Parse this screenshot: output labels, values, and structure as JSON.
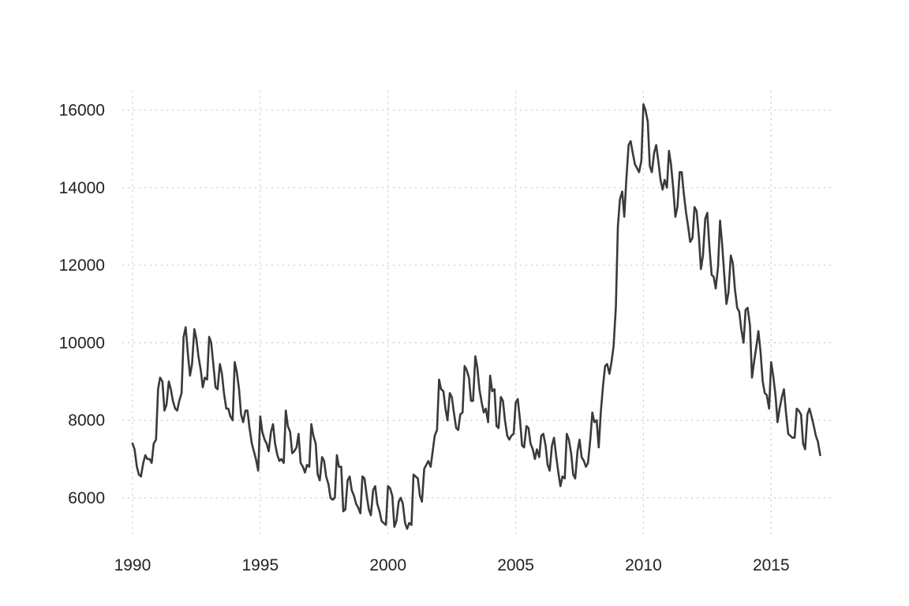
{
  "chart_data": {
    "type": "line",
    "title": "",
    "xlabel": "",
    "ylabel": "",
    "grid": true,
    "legend": "none",
    "xlim": [
      1989.6,
      2017.4
    ],
    "ylim": [
      5000,
      16500
    ],
    "x_ticks": [
      1990,
      1995,
      2000,
      2005,
      2010,
      2015
    ],
    "x_tick_labels": [
      "1990",
      "1995",
      "2000",
      "2005",
      "2010",
      "2015"
    ],
    "y_ticks": [
      6000,
      8000,
      10000,
      12000,
      14000,
      16000
    ],
    "y_tick_labels": [
      "6000",
      "8000",
      "10000",
      "12000",
      "14000",
      "16000"
    ],
    "line_color": "#3a3a3a",
    "series": [
      {
        "x": [
          1990.0,
          1990.08,
          1990.17,
          1990.25,
          1990.33,
          1990.42,
          1990.5,
          1990.58,
          1990.67,
          1990.75,
          1990.83,
          1990.92,
          1991.0,
          1991.08,
          1991.17,
          1991.25,
          1991.33,
          1991.42,
          1991.5,
          1991.58,
          1991.67,
          1991.75,
          1991.83,
          1991.92,
          1992.0,
          1992.08,
          1992.17,
          1992.25,
          1992.33,
          1992.42,
          1992.5,
          1992.58,
          1992.67,
          1992.75,
          1992.83,
          1992.92,
          1993.0,
          1993.08,
          1993.17,
          1993.25,
          1993.33,
          1993.42,
          1993.5,
          1993.58,
          1993.67,
          1993.75,
          1993.83,
          1993.92,
          1994.0,
          1994.08,
          1994.17,
          1994.25,
          1994.33,
          1994.42,
          1994.5,
          1994.58,
          1994.67,
          1994.75,
          1994.83,
          1994.92,
          1995.0,
          1995.08,
          1995.17,
          1995.25,
          1995.33,
          1995.42,
          1995.5,
          1995.58,
          1995.67,
          1995.75,
          1995.83,
          1995.92,
          1996.0,
          1996.08,
          1996.17,
          1996.25,
          1996.33,
          1996.42,
          1996.5,
          1996.58,
          1996.67,
          1996.75,
          1996.83,
          1996.92,
          1997.0,
          1997.08,
          1997.17,
          1997.25,
          1997.33,
          1997.42,
          1997.5,
          1997.58,
          1997.67,
          1997.75,
          1997.83,
          1997.92,
          1998.0,
          1998.08,
          1998.17,
          1998.25,
          1998.33,
          1998.42,
          1998.5,
          1998.58,
          1998.67,
          1998.75,
          1998.83,
          1998.92,
          1999.0,
          1999.08,
          1999.17,
          1999.25,
          1999.33,
          1999.42,
          1999.5,
          1999.58,
          1999.67,
          1999.75,
          1999.83,
          1999.92,
          2000.0,
          2000.08,
          2000.17,
          2000.25,
          2000.33,
          2000.42,
          2000.5,
          2000.58,
          2000.67,
          2000.75,
          2000.83,
          2000.92,
          2001.0,
          2001.08,
          2001.17,
          2001.25,
          2001.33,
          2001.42,
          2001.5,
          2001.58,
          2001.67,
          2001.75,
          2001.83,
          2001.92,
          2002.0,
          2002.08,
          2002.17,
          2002.25,
          2002.33,
          2002.42,
          2002.5,
          2002.58,
          2002.67,
          2002.75,
          2002.83,
          2002.92,
          2003.0,
          2003.08,
          2003.17,
          2003.25,
          2003.33,
          2003.42,
          2003.5,
          2003.58,
          2003.67,
          2003.75,
          2003.83,
          2003.92,
          2004.0,
          2004.08,
          2004.17,
          2004.25,
          2004.33,
          2004.42,
          2004.5,
          2004.58,
          2004.67,
          2004.75,
          2004.83,
          2004.92,
          2005.0,
          2005.08,
          2005.17,
          2005.25,
          2005.33,
          2005.42,
          2005.5,
          2005.58,
          2005.67,
          2005.75,
          2005.83,
          2005.92,
          2006.0,
          2006.08,
          2006.17,
          2006.25,
          2006.33,
          2006.42,
          2006.5,
          2006.58,
          2006.67,
          2006.75,
          2006.83,
          2006.92,
          2007.0,
          2007.08,
          2007.17,
          2007.25,
          2007.33,
          2007.42,
          2007.5,
          2007.58,
          2007.67,
          2007.75,
          2007.83,
          2007.92,
          2008.0,
          2008.08,
          2008.17,
          2008.25,
          2008.33,
          2008.42,
          2008.5,
          2008.58,
          2008.67,
          2008.75,
          2008.83,
          2008.92,
          2009.0,
          2009.08,
          2009.17,
          2009.25,
          2009.33,
          2009.42,
          2009.5,
          2009.58,
          2009.67,
          2009.75,
          2009.83,
          2009.92,
          2010.0,
          2010.08,
          2010.17,
          2010.25,
          2010.33,
          2010.42,
          2010.5,
          2010.58,
          2010.67,
          2010.75,
          2010.83,
          2010.92,
          2011.0,
          2011.08,
          2011.17,
          2011.25,
          2011.33,
          2011.42,
          2011.5,
          2011.58,
          2011.67,
          2011.75,
          2011.83,
          2011.92,
          2012.0,
          2012.08,
          2012.17,
          2012.25,
          2012.33,
          2012.42,
          2012.5,
          2012.58,
          2012.67,
          2012.75,
          2012.83,
          2012.92,
          2013.0,
          2013.08,
          2013.17,
          2013.25,
          2013.33,
          2013.42,
          2013.5,
          2013.58,
          2013.67,
          2013.75,
          2013.83,
          2013.92,
          2014.0,
          2014.08,
          2014.17,
          2014.25,
          2014.33,
          2014.42,
          2014.5,
          2014.58,
          2014.67,
          2014.75,
          2014.83,
          2014.92,
          2015.0,
          2015.08,
          2015.17,
          2015.25,
          2015.33,
          2015.42,
          2015.5,
          2015.58,
          2015.67,
          2015.75,
          2015.83,
          2015.92,
          2016.0,
          2016.08,
          2016.17,
          2016.25,
          2016.33,
          2016.42,
          2016.5,
          2016.58,
          2016.67,
          2016.75,
          2016.83,
          2016.92
        ],
        "y": [
          7400,
          7250,
          6800,
          6600,
          6550,
          6900,
          7100,
          7000,
          7000,
          6900,
          7400,
          7500,
          8800,
          9100,
          9000,
          8250,
          8400,
          9000,
          8800,
          8500,
          8300,
          8250,
          8500,
          8700,
          10150,
          10400,
          9700,
          9150,
          9450,
          10350,
          10100,
          9650,
          9300,
          8850,
          9100,
          9050,
          10150,
          10000,
          9400,
          8850,
          8800,
          9450,
          9200,
          8700,
          8300,
          8300,
          8100,
          8000,
          9500,
          9250,
          8800,
          8150,
          7950,
          8250,
          8250,
          7800,
          7400,
          7200,
          7000,
          6700,
          8100,
          7700,
          7500,
          7400,
          7200,
          7700,
          7900,
          7400,
          7100,
          6950,
          7000,
          6900,
          8250,
          7850,
          7700,
          7150,
          7200,
          7300,
          7650,
          6900,
          6800,
          6650,
          6850,
          6800,
          7900,
          7600,
          7400,
          6600,
          6450,
          7050,
          6950,
          6550,
          6350,
          6000,
          5950,
          6000,
          7100,
          6800,
          6800,
          5650,
          5700,
          6450,
          6550,
          6200,
          6050,
          5850,
          5750,
          5600,
          6550,
          6500,
          6050,
          5700,
          5550,
          6200,
          6300,
          5850,
          5650,
          5400,
          5350,
          5300,
          6300,
          6250,
          6050,
          5250,
          5400,
          5900,
          6000,
          5850,
          5350,
          5200,
          5350,
          5300,
          6600,
          6550,
          6500,
          6050,
          5900,
          6750,
          6850,
          6950,
          6800,
          7200,
          7600,
          7750,
          9050,
          8800,
          8750,
          8300,
          8000,
          8700,
          8600,
          8200,
          7800,
          7750,
          8150,
          8200,
          9400,
          9300,
          9100,
          8500,
          8500,
          9650,
          9350,
          8800,
          8450,
          8200,
          8300,
          7950,
          9150,
          8750,
          8800,
          7850,
          7800,
          8600,
          8500,
          8000,
          7600,
          7500,
          7600,
          7650,
          8450,
          8550,
          8000,
          7350,
          7300,
          7850,
          7800,
          7400,
          7250,
          7000,
          7250,
          7050,
          7600,
          7650,
          7350,
          6850,
          6700,
          7350,
          7550,
          7100,
          6650,
          6300,
          6550,
          6500,
          7650,
          7500,
          7150,
          6600,
          6500,
          7200,
          7500,
          7050,
          6950,
          6800,
          6900,
          7500,
          8200,
          7950,
          8000,
          7300,
          8200,
          8900,
          9400,
          9450,
          9200,
          9500,
          9900,
          10900,
          13000,
          13700,
          13900,
          13250,
          14200,
          15100,
          15200,
          14900,
          14600,
          14500,
          14400,
          14700,
          16150,
          16000,
          15700,
          14550,
          14400,
          14900,
          15100,
          14700,
          14200,
          13950,
          14200,
          14000,
          14950,
          14600,
          13950,
          13250,
          13500,
          14400,
          14400,
          13850,
          13350,
          13000,
          12600,
          12700,
          13500,
          13400,
          12750,
          11900,
          12250,
          13200,
          13350,
          12500,
          11750,
          11700,
          11400,
          11950,
          13150,
          12550,
          11700,
          11000,
          11300,
          12250,
          12050,
          11400,
          10900,
          10800,
          10350,
          10000,
          10850,
          10900,
          10450,
          9100,
          9500,
          9900,
          10300,
          9800,
          9000,
          8700,
          8650,
          8300,
          9500,
          9150,
          8650,
          7950,
          8300,
          8600,
          8800,
          8200,
          7650,
          7600,
          7550,
          7550,
          8300,
          8250,
          8150,
          7400,
          7250,
          8150,
          8300,
          8100,
          7850,
          7600,
          7450,
          7100
        ]
      }
    ]
  }
}
